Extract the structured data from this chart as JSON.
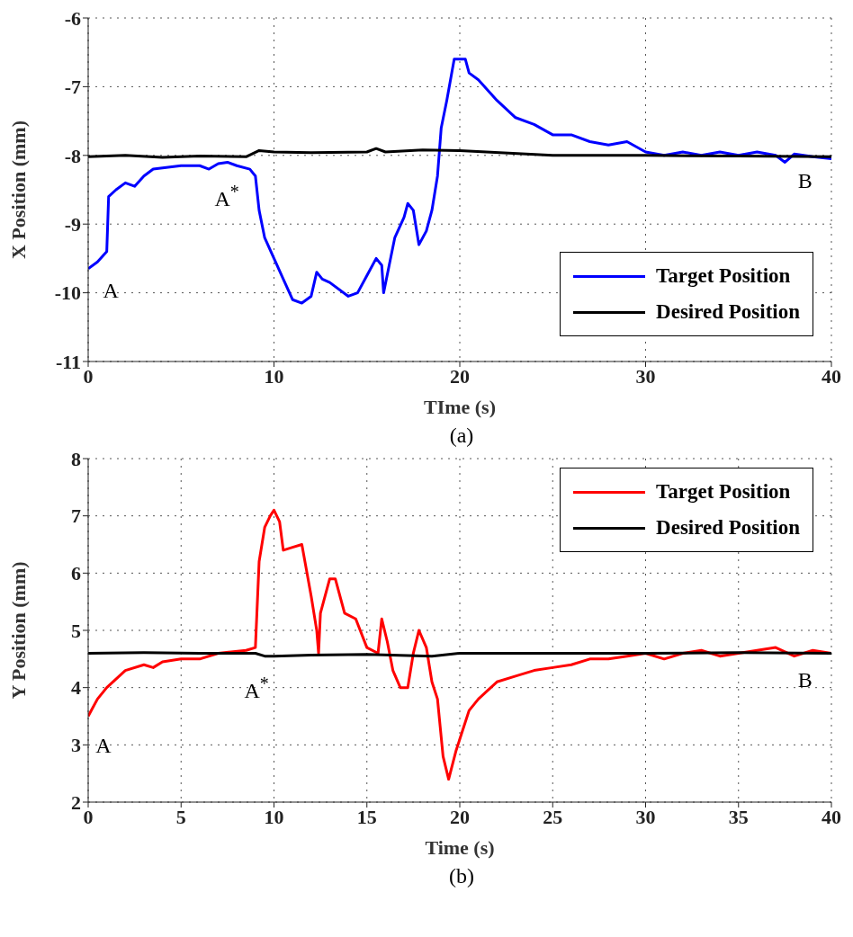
{
  "chart_data": [
    {
      "type": "line",
      "xlabel": "TIme (s)",
      "ylabel": "X Position (mm)",
      "xlim": [
        0,
        40
      ],
      "xticks": [
        0,
        10,
        20,
        30,
        40
      ],
      "ylim": [
        -11,
        -6
      ],
      "yticks": [
        -11,
        -10,
        -9,
        -8,
        -7,
        -6
      ],
      "grid": true,
      "legend": "bottom right",
      "marker": "none",
      "line_style": "solid",
      "series": [
        {
          "name": "Target Position",
          "color": "#0000ff",
          "x": [
            0,
            0.5,
            1,
            1.1,
            1.5,
            2,
            2.5,
            3,
            3.5,
            5,
            6,
            6.5,
            7,
            7.5,
            8,
            8.7,
            9,
            9.2,
            9.5,
            10,
            10.5,
            11,
            11.5,
            12,
            12.3,
            12.6,
            13,
            14,
            14.5,
            15,
            15.5,
            15.8,
            15.9,
            16.2,
            16.5,
            17,
            17.2,
            17.5,
            17.8,
            18.2,
            18.5,
            18.8,
            19,
            19.3,
            19.7,
            20.3,
            20.5,
            21,
            22,
            23,
            24,
            25,
            26,
            27,
            28,
            29,
            30,
            31,
            32,
            33,
            34,
            35,
            36,
            37,
            37.5,
            38,
            39,
            40
          ],
          "values": [
            -9.65,
            -9.55,
            -9.4,
            -8.6,
            -8.5,
            -8.4,
            -8.45,
            -8.3,
            -8.2,
            -8.15,
            -8.15,
            -8.2,
            -8.12,
            -8.1,
            -8.15,
            -8.2,
            -8.3,
            -8.8,
            -9.2,
            -9.5,
            -9.8,
            -10.1,
            -10.15,
            -10.05,
            -9.7,
            -9.8,
            -9.85,
            -10.05,
            -10,
            -9.75,
            -9.5,
            -9.6,
            -10,
            -9.6,
            -9.2,
            -8.9,
            -8.7,
            -8.8,
            -9.3,
            -9.1,
            -8.8,
            -8.3,
            -7.6,
            -7.2,
            -6.6,
            -6.6,
            -6.8,
            -6.9,
            -7.2,
            -7.45,
            -7.55,
            -7.7,
            -7.7,
            -7.8,
            -7.85,
            -7.8,
            -7.95,
            -8,
            -7.95,
            -8,
            -7.95,
            -8,
            -7.95,
            -8,
            -8.1,
            -7.98,
            -8.02,
            -8.05
          ]
        },
        {
          "name": "Desired Position",
          "color": "#000000",
          "x": [
            0,
            2,
            4,
            6,
            8.5,
            9.2,
            10,
            12,
            15,
            15.5,
            16,
            18,
            20,
            25,
            30,
            35,
            40
          ],
          "values": [
            -8.02,
            -8,
            -8.03,
            -8.01,
            -8.02,
            -7.93,
            -7.95,
            -7.96,
            -7.95,
            -7.9,
            -7.95,
            -7.92,
            -7.93,
            -8,
            -8,
            -8.01,
            -8.02
          ]
        }
      ],
      "annotations": [
        "A",
        "A$^{*}$",
        "B",
        "(a)"
      ]
    },
    {
      "type": "line",
      "xlabel": "Time (s)",
      "ylabel": "Y Position (mm)",
      "xlim": [
        0,
        40
      ],
      "xticks": [
        0,
        5,
        10,
        15,
        20,
        25,
        30,
        35,
        40
      ],
      "ylim": [
        2,
        8
      ],
      "yticks": [
        2,
        3,
        4,
        5,
        6,
        7,
        8
      ],
      "grid": true,
      "legend": "top right",
      "marker": "none",
      "line_style": "solid",
      "series": [
        {
          "name": "Target Position",
          "color": "#ff0000",
          "x": [
            0,
            0.5,
            1,
            1.5,
            2,
            3,
            3.5,
            4,
            5,
            6,
            7,
            8.5,
            9,
            9.2,
            9.5,
            9.8,
            10,
            10.3,
            10.5,
            11,
            11.5,
            12,
            12.3,
            12.4,
            12.5,
            13,
            13.3,
            13.8,
            14.4,
            15,
            15.6,
            15.8,
            16.1,
            16.4,
            16.8,
            17.2,
            17.5,
            17.8,
            18.2,
            18.5,
            18.8,
            19.1,
            19.4,
            19.8,
            20.5,
            21,
            22,
            23,
            24,
            25,
            26,
            27,
            28,
            29,
            30,
            31,
            32,
            33,
            34,
            35,
            36,
            37,
            38,
            39,
            40
          ],
          "values": [
            3.5,
            3.8,
            4,
            4.15,
            4.3,
            4.4,
            4.35,
            4.45,
            4.5,
            4.5,
            4.6,
            4.65,
            4.7,
            6.2,
            6.8,
            7,
            7.1,
            6.9,
            6.4,
            6.45,
            6.5,
            5.6,
            5,
            4.6,
            5.3,
            5.9,
            5.9,
            5.3,
            5.2,
            4.7,
            4.6,
            5.2,
            4.8,
            4.3,
            4,
            4,
            4.6,
            5,
            4.7,
            4.1,
            3.8,
            2.8,
            2.4,
            2.9,
            3.6,
            3.8,
            4.1,
            4.2,
            4.3,
            4.35,
            4.4,
            4.5,
            4.5,
            4.55,
            4.6,
            4.5,
            4.6,
            4.65,
            4.55,
            4.6,
            4.65,
            4.7,
            4.55,
            4.65,
            4.6
          ]
        },
        {
          "name": "Desired Position",
          "color": "#000000",
          "x": [
            0,
            3,
            6,
            9,
            9.5,
            10,
            12,
            15,
            18.5,
            20,
            25,
            30,
            35,
            40
          ],
          "values": [
            4.6,
            4.61,
            4.6,
            4.6,
            4.55,
            4.55,
            4.57,
            4.58,
            4.55,
            4.6,
            4.6,
            4.6,
            4.61,
            4.6
          ]
        }
      ],
      "annotations": [
        "A",
        "A$^{*}$",
        "B",
        "(b)"
      ]
    }
  ]
}
